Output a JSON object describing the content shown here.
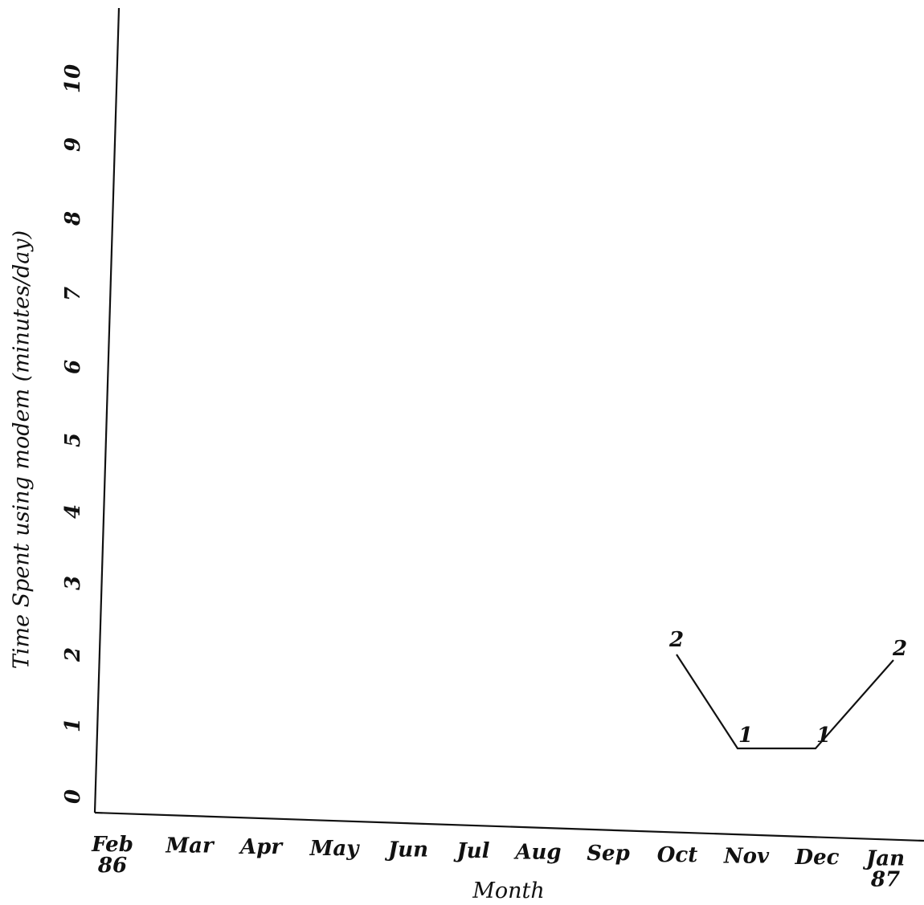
{
  "chart_data": {
    "type": "line",
    "xlabel": "Month",
    "ylabel": "Time Spent using modem (minutes/day)",
    "ylim": [
      0,
      10
    ],
    "y_ticks": [
      "0",
      "1",
      "2",
      "3",
      "4",
      "5",
      "6",
      "7",
      "8",
      "9",
      "10"
    ],
    "categories": [
      {
        "line1": "Feb",
        "line2": "86"
      },
      {
        "line1": "Mar",
        "line2": ""
      },
      {
        "line1": "Apr",
        "line2": ""
      },
      {
        "line1": "May",
        "line2": ""
      },
      {
        "line1": "Jun",
        "line2": ""
      },
      {
        "line1": "Jul",
        "line2": ""
      },
      {
        "line1": "Aug",
        "line2": ""
      },
      {
        "line1": "Sep",
        "line2": ""
      },
      {
        "line1": "Oct",
        "line2": ""
      },
      {
        "line1": "Nov",
        "line2": ""
      },
      {
        "line1": "Dec",
        "line2": ""
      },
      {
        "line1": "Jan",
        "line2": "87"
      }
    ],
    "series": [
      {
        "points": [
          {
            "category_index": 8,
            "value": 2,
            "label": "2"
          },
          {
            "category_index": 9,
            "value": 1,
            "label": "1"
          },
          {
            "category_index": 10,
            "value": 1,
            "label": "1"
          },
          {
            "category_index": 11,
            "value": 2,
            "label": "2"
          }
        ]
      }
    ],
    "grid": false,
    "legend": "none"
  }
}
